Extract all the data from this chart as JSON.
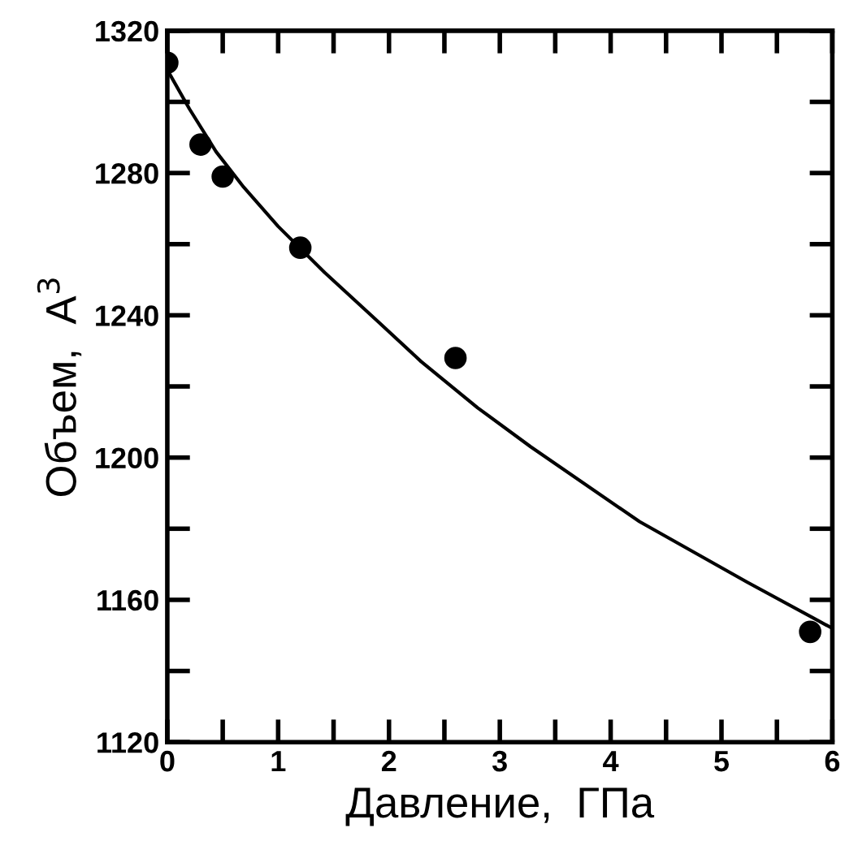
{
  "chart_data": {
    "type": "scatter",
    "xlabel": "Давление,  ГПа",
    "ylabel": "Объем,  A$^{3}$",
    "xlim": [
      0,
      6
    ],
    "ylim": [
      1120,
      1320
    ],
    "xticks": [
      0,
      {
        "value": 0.5,
        "label": null
      },
      1,
      {
        "value": 1.5,
        "label": null
      },
      2,
      {
        "value": 2.5,
        "label": null
      },
      3,
      {
        "value": 3.5,
        "label": null
      },
      4,
      {
        "value": 4.5,
        "label": null
      },
      5,
      {
        "value": 5.5,
        "label": null
      },
      6
    ],
    "yticks": [
      1120,
      {
        "value": 1140,
        "label": null
      },
      1160,
      {
        "value": 1180,
        "label": null
      },
      1200,
      {
        "value": 1220,
        "label": null
      },
      1240,
      {
        "value": 1260,
        "label": null
      },
      1280,
      {
        "value": 1300,
        "label": null
      },
      1320
    ],
    "grid": false,
    "legend": false,
    "series": [
      {
        "color": "#000000",
        "marker": "circle",
        "x": [
          0,
          0.3,
          0.5,
          1.2,
          2.6,
          5.8
        ],
        "values": [
          1311,
          1288,
          1279,
          1259,
          1228,
          1151
        ]
      },
      {
        "type": "line",
        "color": "#000000",
        "marker": "none",
        "line_style": "solid",
        "x": [
          0,
          0.2,
          0.44,
          0.69,
          1.0,
          1.42,
          1.91,
          2.29,
          2.8,
          3.28,
          4.26,
          5.23,
          6.0
        ],
        "values": [
          1309,
          1298,
          1286,
          1276,
          1265,
          1252,
          1238,
          1227,
          1214,
          1203,
          1182,
          1165,
          1152
        ]
      }
    ]
  }
}
